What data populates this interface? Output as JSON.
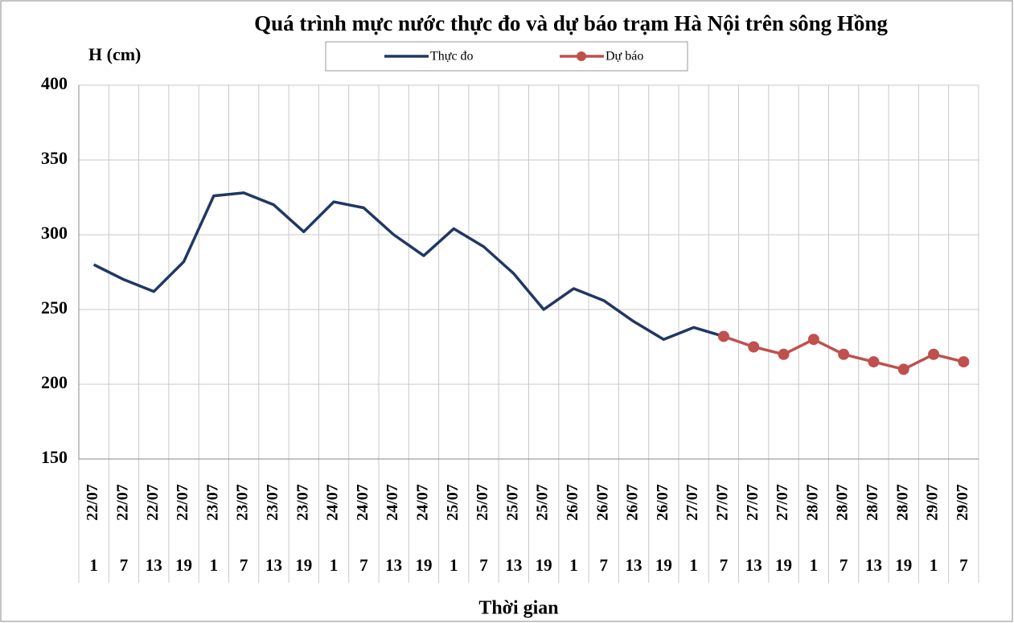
{
  "chart_data": {
    "type": "line",
    "title": "Quá trình mực nước thực đo và dự báo trạm Hà Nội trên sông Hồng",
    "y_label": "H (cm)",
    "x_label": "Thời gian",
    "categories": [
      {
        "date": "22/07",
        "hour": 1
      },
      {
        "date": "22/07",
        "hour": 7
      },
      {
        "date": "22/07",
        "hour": 13
      },
      {
        "date": "22/07",
        "hour": 19
      },
      {
        "date": "23/07",
        "hour": 1
      },
      {
        "date": "23/07",
        "hour": 7
      },
      {
        "date": "23/07",
        "hour": 13
      },
      {
        "date": "23/07",
        "hour": 19
      },
      {
        "date": "24/07",
        "hour": 1
      },
      {
        "date": "24/07",
        "hour": 7
      },
      {
        "date": "24/07",
        "hour": 13
      },
      {
        "date": "24/07",
        "hour": 19
      },
      {
        "date": "25/07",
        "hour": 1
      },
      {
        "date": "25/07",
        "hour": 7
      },
      {
        "date": "25/07",
        "hour": 13
      },
      {
        "date": "25/07",
        "hour": 19
      },
      {
        "date": "26/07",
        "hour": 1
      },
      {
        "date": "26/07",
        "hour": 7
      },
      {
        "date": "26/07",
        "hour": 13
      },
      {
        "date": "26/07",
        "hour": 19
      },
      {
        "date": "27/07",
        "hour": 1
      },
      {
        "date": "27/07",
        "hour": 7
      },
      {
        "date": "27/07",
        "hour": 13
      },
      {
        "date": "27/07",
        "hour": 19
      },
      {
        "date": "28/07",
        "hour": 1
      },
      {
        "date": "28/07",
        "hour": 7
      },
      {
        "date": "28/07",
        "hour": 13
      },
      {
        "date": "28/07",
        "hour": 19
      },
      {
        "date": "29/07",
        "hour": 1
      },
      {
        "date": "29/07",
        "hour": 7
      }
    ],
    "series": [
      {
        "name": "Thực đo",
        "color": "#1f3864",
        "marker": false,
        "values": [
          280,
          270,
          262,
          282,
          326,
          328,
          320,
          302,
          322,
          318,
          300,
          286,
          304,
          292,
          274,
          250,
          264,
          256,
          242,
          230,
          238,
          232,
          null,
          null,
          null,
          null,
          null,
          null,
          null,
          null
        ]
      },
      {
        "name": "Dự báo",
        "color": "#c0504d",
        "marker": true,
        "values": [
          null,
          null,
          null,
          null,
          null,
          null,
          null,
          null,
          null,
          null,
          null,
          null,
          null,
          null,
          null,
          null,
          null,
          null,
          null,
          null,
          null,
          232,
          225,
          220,
          230,
          220,
          215,
          210,
          220,
          215
        ]
      }
    ],
    "ylim": [
      150,
      400
    ],
    "yticks": [
      150,
      200,
      250,
      300,
      350,
      400
    ],
    "grid": true
  }
}
